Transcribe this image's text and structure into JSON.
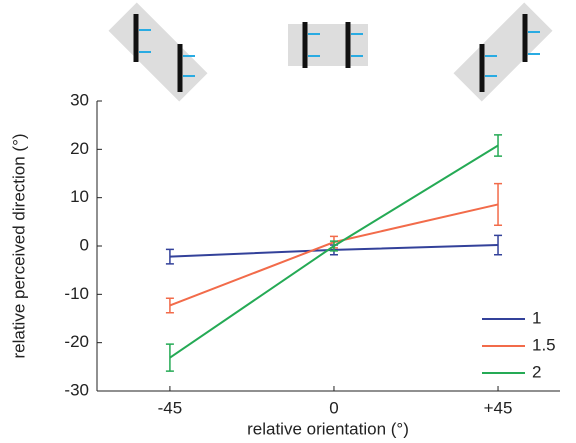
{
  "chart_data": {
    "type": "line",
    "xlabel": "relative orientation (°)",
    "ylabel": "relative perceived direction (°)",
    "x": [
      -45,
      0,
      45
    ],
    "xlim": [
      -65,
      62
    ],
    "xticks": [
      -45,
      0,
      {
        "value": 45,
        "label": "+45"
      }
    ],
    "ylim": [
      -30,
      30
    ],
    "yticks": [
      -30,
      -20,
      -10,
      0,
      10,
      20,
      30
    ],
    "legend": "lower right",
    "series": [
      {
        "name": "1",
        "color": "#33419a",
        "values": [
          -2.2,
          -0.8,
          0.2
        ],
        "errors": [
          1.5,
          1.0,
          2.0
        ]
      },
      {
        "name": "1.5",
        "color": "#f26b4a",
        "values": [
          -12.3,
          0.8,
          8.6
        ],
        "errors": [
          1.5,
          1.2,
          4.3
        ]
      },
      {
        "name": "2",
        "color": "#25aa55",
        "values": [
          -23.1,
          0.0,
          20.8
        ],
        "errors": [
          2.8,
          1.0,
          2.2
        ]
      }
    ]
  }
}
